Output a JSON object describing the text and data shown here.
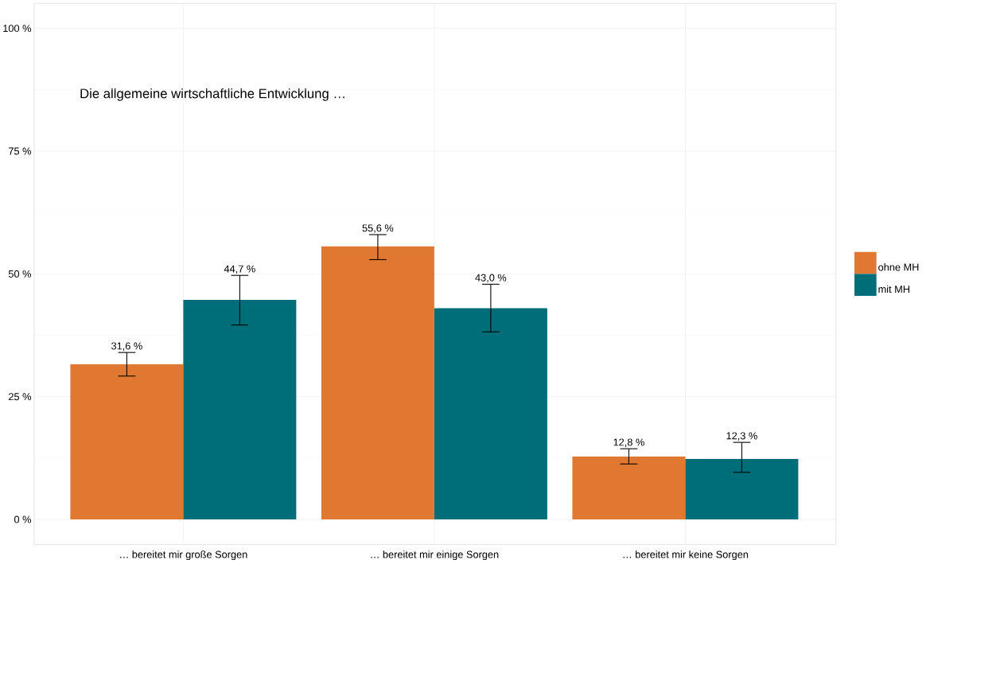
{
  "chart_data": {
    "type": "bar",
    "title": "Die allgemeine wirtschaftliche Entwicklung …",
    "categories": [
      "… bereitet mir große Sorgen",
      "… bereitet mir einige Sorgen",
      "… bereitet mir keine Sorgen"
    ],
    "series": [
      {
        "name": "ohne MH",
        "color": "#e07832",
        "values": [
          31.6,
          55.6,
          12.8
        ],
        "errors": [
          [
            29.2,
            34.0
          ],
          [
            52.9,
            58.0
          ],
          [
            11.3,
            14.4
          ]
        ],
        "value_labels": [
          "31,6 %",
          "55,6 %",
          "12,8 %"
        ]
      },
      {
        "name": "mit MH",
        "color": "#006e78",
        "values": [
          44.7,
          43.0,
          12.3
        ],
        "errors": [
          [
            39.6,
            49.7
          ],
          [
            38.2,
            47.9
          ],
          [
            9.6,
            15.7
          ]
        ],
        "value_labels": [
          "44,7 %",
          "43,0 %",
          "12,3 %"
        ]
      }
    ],
    "ylim": [
      -5.1,
      105.1
    ],
    "yticks": [
      {
        "value": 0,
        "label": "0 %"
      },
      {
        "value": 25,
        "label": "25 %"
      },
      {
        "value": 50,
        "label": "50 %"
      },
      {
        "value": 75,
        "label": "75 %"
      },
      {
        "value": 100,
        "label": "100 %"
      }
    ],
    "grid": true,
    "legend": "right"
  }
}
